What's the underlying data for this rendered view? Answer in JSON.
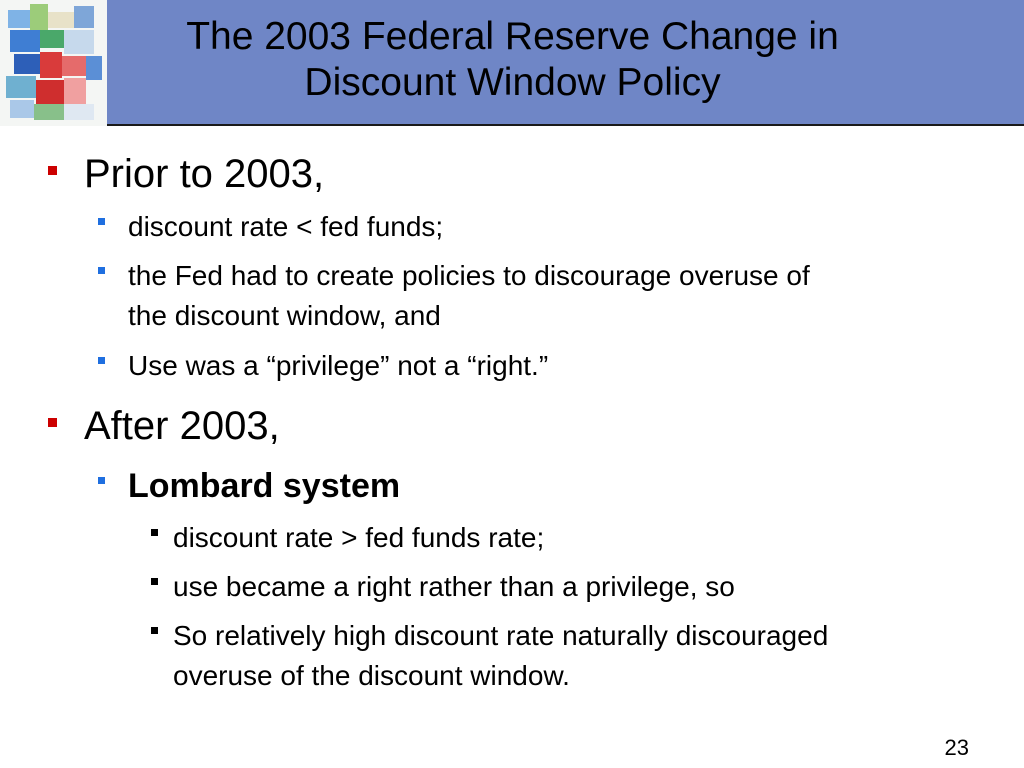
{
  "slide": {
    "title_line1": "The 2003 Federal Reserve Change in",
    "title_line2": "Discount Window Policy",
    "page_number": "23"
  },
  "bullets": {
    "prior": {
      "label": "Prior to 2003,",
      "items": [
        "discount rate < fed funds;",
        "the Fed had to create policies to discourage overuse of",
        "the discount window, and",
        "Use was a “privilege” not a “right.”"
      ]
    },
    "after": {
      "label": "After 2003,",
      "sub_label": "Lombard system",
      "items": [
        "discount rate > fed funds rate;",
        "use became a right rather than a privilege, so",
        "So relatively high discount rate naturally discouraged",
        "overuse of the discount window."
      ]
    }
  },
  "colors": {
    "title_bar": "#6f86c6",
    "bullet_level1": "#cc0000",
    "bullet_level2": "#1f6fe0",
    "bullet_level3": "#000000"
  }
}
